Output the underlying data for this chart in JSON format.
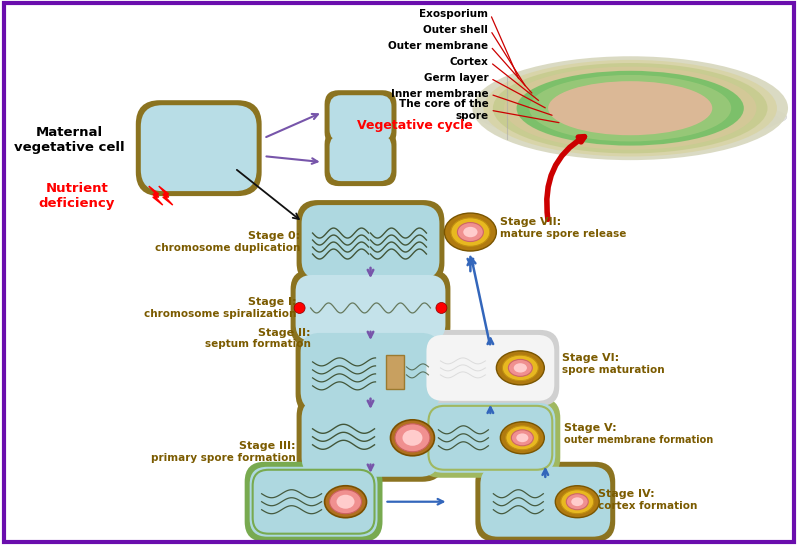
{
  "bg_color": "#ffffff",
  "border_color": "#6a0dad",
  "spore_labels": [
    "Exosporium",
    "Outer shell",
    "Outer membrane",
    "Cortex",
    "Germ layer",
    "Inner membrane",
    "The core of the\nspore"
  ],
  "maternal_label": "Maternal\nvegetative cell",
  "vegetative_label": "Vegetative cycle",
  "nutrient_label": "Nutrient\ndeficiency",
  "cell_fill": "#aed8e0",
  "cell_edge_color": "#8B7320",
  "cell_edge_inner": "#6aaa44",
  "stage_text_color": "#7B5B00",
  "purple_arrow": "#7755aa",
  "blue_arrow": "#3366bb"
}
